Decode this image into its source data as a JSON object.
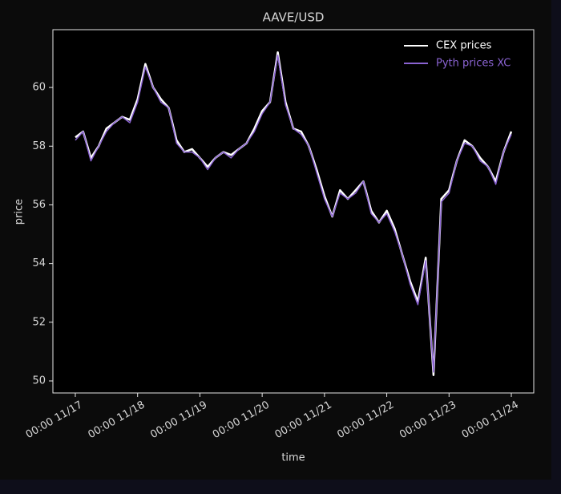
{
  "chart_data": {
    "type": "line",
    "title": "AAVE/USD",
    "x_label": "time",
    "y_label": "price",
    "x": [
      17.0,
      17.125,
      17.25,
      17.375,
      17.5,
      17.625,
      17.75,
      17.875,
      18.0,
      18.125,
      18.25,
      18.375,
      18.5,
      18.625,
      18.75,
      18.875,
      19.0,
      19.125,
      19.25,
      19.375,
      19.5,
      19.625,
      19.75,
      19.875,
      20.0,
      20.125,
      20.25,
      20.375,
      20.5,
      20.625,
      20.75,
      20.875,
      21.0,
      21.125,
      21.25,
      21.375,
      21.5,
      21.625,
      21.75,
      21.875,
      22.0,
      22.125,
      22.25,
      22.375,
      22.5,
      22.625,
      22.75,
      22.875,
      23.0,
      23.125,
      23.25,
      23.375,
      23.5,
      23.625,
      23.75,
      23.875,
      24.0
    ],
    "series": [
      {
        "name": "CEX prices",
        "color": "#ffffff",
        "values": [
          58.3,
          58.5,
          57.6,
          58.0,
          58.6,
          58.8,
          59.0,
          58.9,
          59.6,
          60.8,
          60.0,
          59.6,
          59.3,
          58.2,
          57.8,
          57.9,
          57.6,
          57.3,
          57.6,
          57.8,
          57.7,
          57.9,
          58.1,
          58.6,
          59.2,
          59.5,
          61.2,
          59.5,
          58.6,
          58.5,
          58.0,
          57.2,
          56.3,
          55.6,
          56.5,
          56.2,
          56.5,
          56.8,
          55.8,
          55.4,
          55.8,
          55.2,
          54.3,
          53.4,
          52.7,
          54.2,
          50.2,
          56.2,
          56.5,
          57.5,
          58.2,
          58.0,
          57.6,
          57.3,
          56.8,
          57.8,
          58.5
        ]
      },
      {
        "name": "Pyth prices XC",
        "color": "#8a63d2",
        "values": [
          58.2,
          58.5,
          57.5,
          58.0,
          58.5,
          58.8,
          59.0,
          58.8,
          59.5,
          60.7,
          60.0,
          59.5,
          59.3,
          58.1,
          57.8,
          57.8,
          57.6,
          57.2,
          57.6,
          57.8,
          57.6,
          57.9,
          58.1,
          58.5,
          59.1,
          59.5,
          61.1,
          59.4,
          58.6,
          58.4,
          58.0,
          57.1,
          56.2,
          55.6,
          56.4,
          56.2,
          56.4,
          56.8,
          55.7,
          55.4,
          55.7,
          55.1,
          54.3,
          53.3,
          52.6,
          54.1,
          50.3,
          56.1,
          56.4,
          57.5,
          58.1,
          58.0,
          57.5,
          57.3,
          56.7,
          57.8,
          58.4
        ]
      }
    ],
    "xlim": [
      16.64,
      24.36
    ],
    "ylim": [
      49.59,
      61.97
    ],
    "xticks": [
      {
        "value": 17,
        "label": "00:00 11/17"
      },
      {
        "value": 18,
        "label": "00:00 11/18"
      },
      {
        "value": 19,
        "label": "00:00 11/19"
      },
      {
        "value": 20,
        "label": "00:00 11/20"
      },
      {
        "value": 21,
        "label": "00:00 11/21"
      },
      {
        "value": 22,
        "label": "00:00 11/22"
      },
      {
        "value": 23,
        "label": "00:00 11/23"
      },
      {
        "value": 24,
        "label": "00:00 11/24"
      }
    ],
    "yticks": [
      50,
      52,
      54,
      56,
      58,
      60
    ],
    "legend": "upper right",
    "grid": false
  }
}
